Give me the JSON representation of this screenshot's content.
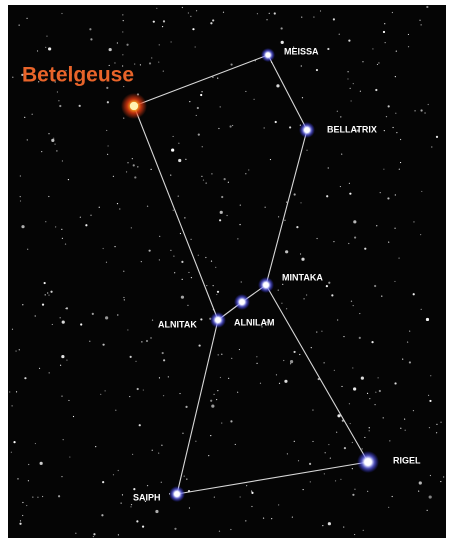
{
  "nodes": [
    {
      "label": "Betelgeuse"
    },
    {
      "label": "MEISSA"
    },
    {
      "label": "BELLATRIX"
    },
    {
      "label": "MINTAKA"
    },
    {
      "label": "ALNILAM"
    },
    {
      "label": "ALNITAK"
    },
    {
      "label": "RIGEL"
    },
    {
      "label": "SAIPH"
    }
  ]
}
